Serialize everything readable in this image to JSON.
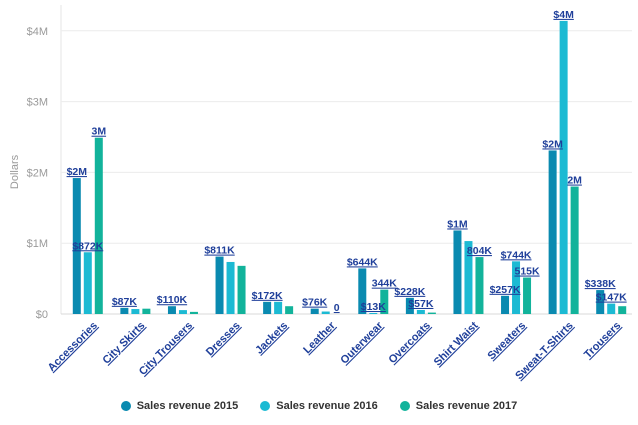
{
  "chart_data": {
    "type": "bar",
    "title": "",
    "xlabel": "",
    "ylabel": "Dollars",
    "ylim": [
      0,
      4200000
    ],
    "yticks": [
      0,
      1000000,
      2000000,
      3000000,
      4000000
    ],
    "ytick_labels": [
      "$0",
      "$1M",
      "$2M",
      "$3M",
      "$4M"
    ],
    "grid": true,
    "legend_position": "bottom",
    "categories": [
      "Accessories",
      "City Skirts",
      "City Trousers",
      "Dresses",
      "Jackets",
      "Leather",
      "Outerwear",
      "Overcoats",
      "Shirt Waist",
      "Sweaters",
      "Sweat-T-Shirts",
      "Trousers"
    ],
    "series": [
      {
        "name": "Sales revenue 2015",
        "color": "#0a8ab0",
        "values": [
          1920000,
          87000,
          110000,
          811000,
          172000,
          76000,
          644000,
          228000,
          1180000,
          257000,
          2310000,
          338000
        ],
        "labels": [
          "$2M",
          "$87K",
          "$110K",
          "$811K",
          "$172K",
          "$76K",
          "$644K",
          "$228K",
          "$1M",
          "$257K",
          "$2M",
          "$338K"
        ]
      },
      {
        "name": "Sales revenue 2016",
        "color": "#1cbad3",
        "values": [
          872000,
          70000,
          55000,
          735000,
          172000,
          35000,
          13000,
          57000,
          1030000,
          744000,
          4140000,
          147000
        ],
        "labels": [
          "$872K",
          "",
          "",
          "",
          "",
          "",
          "$13K",
          "$57K",
          "",
          "$744K",
          "$4M",
          "$147K"
        ]
      },
      {
        "name": "Sales revenue 2017",
        "color": "#12b39b",
        "values": [
          2490000,
          75000,
          30000,
          680000,
          110000,
          0,
          344000,
          20000,
          804000,
          515000,
          1800000,
          110000
        ],
        "labels": [
          "3M",
          "",
          "",
          "",
          "",
          "0",
          "344K",
          "",
          "804K",
          "515K",
          "2M",
          ""
        ]
      }
    ]
  }
}
